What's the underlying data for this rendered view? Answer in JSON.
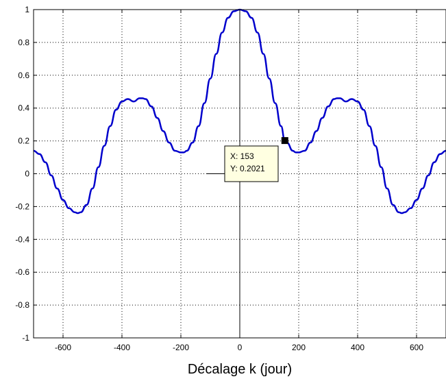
{
  "chart_data": {
    "type": "line",
    "title": "",
    "xlabel": "Décalage k (jour)",
    "ylabel": "",
    "xlim": [
      -700,
      700
    ],
    "ylim": [
      -1,
      1
    ],
    "grid": true,
    "x_ticks": [
      -600,
      -400,
      -200,
      0,
      200,
      400,
      600
    ],
    "x_tick_labels": [
      "-600",
      "-400",
      "-200",
      "0",
      "200",
      "400",
      "600"
    ],
    "y_ticks": [
      1,
      0.8,
      0.6,
      0.4,
      0.2,
      0,
      -0.2,
      -0.4,
      -0.6,
      -0.8,
      -1
    ],
    "y_tick_labels": [
      "1",
      "0.8",
      "0.6",
      "0.4",
      "0.2",
      "0",
      "-0.2",
      "-0.4",
      "-0.6",
      "-0.8",
      "-1"
    ],
    "series": [
      {
        "color": "#0000cc",
        "x": [
          -700,
          -680,
          -660,
          -640,
          -620,
          -600,
          -580,
          -560,
          -550,
          -540,
          -520,
          -500,
          -480,
          -460,
          -440,
          -420,
          -400,
          -380,
          -360,
          -340,
          -330,
          -320,
          -300,
          -280,
          -260,
          -240,
          -220,
          -200,
          -190,
          -180,
          -160,
          -140,
          -120,
          -100,
          -80,
          -60,
          -40,
          -20,
          0,
          20,
          40,
          60,
          80,
          100,
          120,
          140,
          153,
          160,
          180,
          190,
          200,
          220,
          240,
          260,
          280,
          300,
          320,
          330,
          340,
          360,
          380,
          400,
          420,
          440,
          460,
          480,
          500,
          520,
          540,
          550,
          560,
          580,
          600,
          620,
          640,
          660,
          680,
          700
        ],
        "y": [
          0.14,
          0.12,
          0.07,
          -0.01,
          -0.09,
          -0.16,
          -0.21,
          -0.235,
          -0.24,
          -0.235,
          -0.19,
          -0.09,
          0.04,
          0.17,
          0.29,
          0.39,
          0.44,
          0.455,
          0.44,
          0.46,
          0.46,
          0.455,
          0.41,
          0.34,
          0.26,
          0.19,
          0.14,
          0.13,
          0.13,
          0.14,
          0.19,
          0.29,
          0.43,
          0.58,
          0.73,
          0.86,
          0.95,
          0.99,
          1.0,
          0.99,
          0.95,
          0.86,
          0.73,
          0.58,
          0.43,
          0.29,
          0.2021,
          0.19,
          0.14,
          0.13,
          0.13,
          0.14,
          0.19,
          0.26,
          0.34,
          0.41,
          0.455,
          0.46,
          0.46,
          0.44,
          0.455,
          0.44,
          0.39,
          0.29,
          0.17,
          0.04,
          -0.09,
          -0.19,
          -0.235,
          -0.24,
          -0.235,
          -0.21,
          -0.16,
          -0.09,
          -0.01,
          0.07,
          0.12,
          0.14
        ]
      }
    ],
    "datatip": {
      "x_value": 153,
      "y_value": 0.2021,
      "x_text": "X: 153",
      "y_text": "Y: 0.2021"
    }
  }
}
